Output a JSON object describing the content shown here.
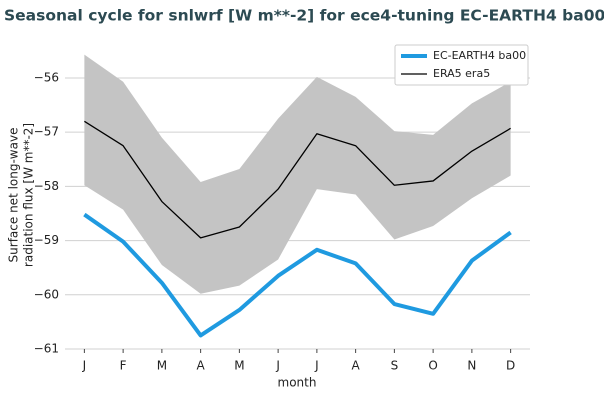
{
  "chart_data": {
    "type": "line",
    "title": "Seasonal cycle for snlwrf [W m**-2] for ece4-tuning EC-EARTH4 ba00",
    "ylabel": [
      "Surface net long-wave",
      "radiation flux [W m**-2]"
    ],
    "xlabel": "month",
    "categories": [
      "J",
      "F",
      "M",
      "A",
      "M",
      "J",
      "J",
      "A",
      "S",
      "O",
      "N",
      "D"
    ],
    "series": [
      {
        "name": "EC-EARTH4 ba00",
        "color": "#1f9ae0",
        "values": [
          -58.52,
          -59.02,
          -59.78,
          -60.75,
          -60.28,
          -59.65,
          -59.17,
          -59.42,
          -60.17,
          -60.35,
          -59.37,
          -58.85
        ]
      },
      {
        "name": "ERA5 era5",
        "color": "#000000",
        "values": [
          -56.8,
          -57.25,
          -58.28,
          -58.95,
          -58.75,
          -58.05,
          -57.03,
          -57.25,
          -57.98,
          -57.9,
          -57.35,
          -56.93
        ]
      }
    ],
    "band": {
      "color": "#c4c4c4",
      "upper": [
        -55.57,
        -56.07,
        -57.1,
        -57.92,
        -57.68,
        -56.75,
        -55.98,
        -56.35,
        -56.98,
        -57.05,
        -56.47,
        -56.07
      ],
      "lower": [
        -57.98,
        -58.43,
        -59.45,
        -59.98,
        -59.83,
        -59.35,
        -58.05,
        -58.15,
        -58.98,
        -58.73,
        -58.22,
        -57.8
      ]
    },
    "ylim": [
      -61,
      -55.3
    ],
    "yticks": [
      {
        "value": -61,
        "label": "−61"
      },
      {
        "value": -60,
        "label": "−60"
      },
      {
        "value": -59,
        "label": "−59"
      },
      {
        "value": -58,
        "label": "−58"
      },
      {
        "value": -57,
        "label": "−57"
      },
      {
        "value": -56,
        "label": "−56"
      }
    ],
    "grid": true,
    "legend": "upper right"
  }
}
